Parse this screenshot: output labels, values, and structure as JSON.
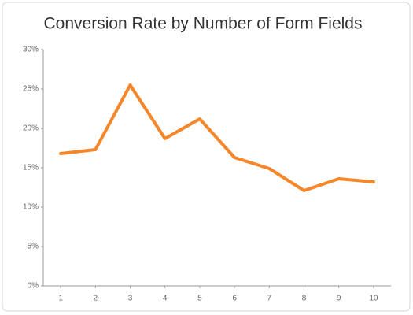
{
  "chart_data": {
    "type": "line",
    "title": "Conversion Rate by Number of Form Fields",
    "x": [
      1,
      2,
      3,
      4,
      5,
      6,
      7,
      8,
      9,
      10
    ],
    "series": [
      {
        "name": "Conversion Rate",
        "color": "#f5862a",
        "values": [
          16.8,
          17.3,
          25.5,
          18.7,
          21.2,
          16.3,
          14.9,
          12.1,
          13.6,
          13.2
        ]
      }
    ],
    "xlim": [
      0.5,
      10.5
    ],
    "xticks": [
      1,
      2,
      3,
      4,
      5,
      6,
      7,
      8,
      9,
      10
    ],
    "ylim": [
      0,
      30
    ],
    "yticks": [
      {
        "value": 0,
        "label": "0%"
      },
      {
        "value": 5,
        "label": "5%"
      },
      {
        "value": 10,
        "label": "10%"
      },
      {
        "value": 15,
        "label": "15%"
      },
      {
        "value": 20,
        "label": "20%"
      },
      {
        "value": 25,
        "label": "25%"
      },
      {
        "value": 30,
        "label": "30%"
      }
    ],
    "grid": false,
    "legend": false
  }
}
